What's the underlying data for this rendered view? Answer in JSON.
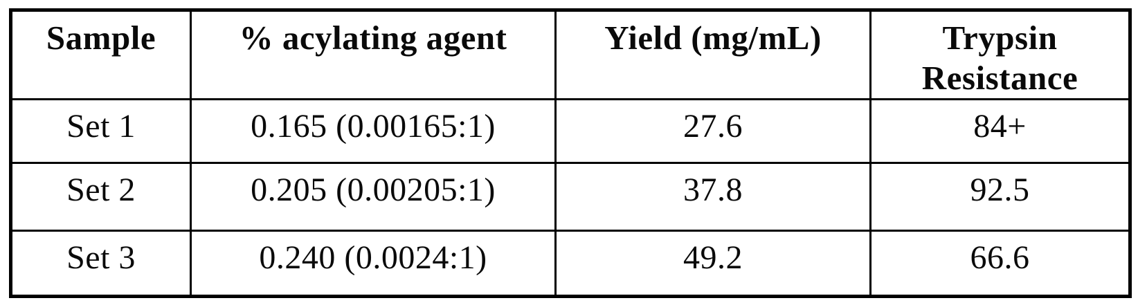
{
  "document": {
    "kind": "scanned-table"
  },
  "colors": {
    "background": "#ffffff",
    "border": "#000000",
    "text": "#0a0a0a"
  },
  "table": {
    "columns": [
      "Sample",
      "% acylating agent",
      "Yield (mg/mL)",
      "Trypsin Resistance"
    ],
    "rows": [
      [
        "Set 1",
        "0.165 (0.00165:1)",
        "27.6",
        "84+"
      ],
      [
        "Set 2",
        "0.205 (0.00205:1)",
        "37.8",
        "92.5"
      ],
      [
        "Set 3",
        "0.240 (0.0024:1)",
        "49.2",
        "66.6"
      ]
    ]
  }
}
